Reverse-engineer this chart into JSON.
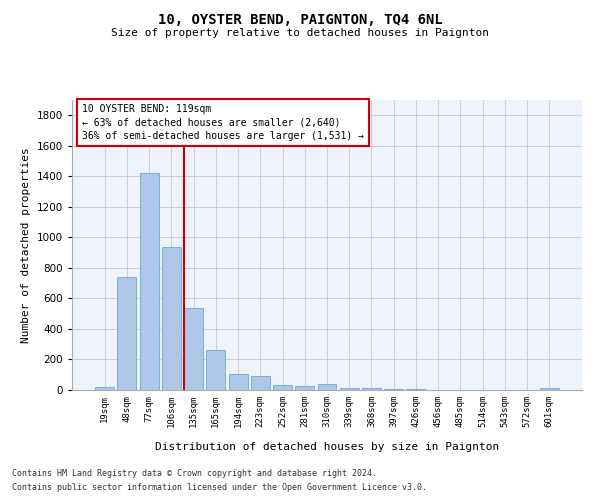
{
  "title1": "10, OYSTER BEND, PAIGNTON, TQ4 6NL",
  "title2": "Size of property relative to detached houses in Paignton",
  "xlabel": "Distribution of detached houses by size in Paignton",
  "ylabel": "Number of detached properties",
  "categories": [
    "19sqm",
    "48sqm",
    "77sqm",
    "106sqm",
    "135sqm",
    "165sqm",
    "194sqm",
    "223sqm",
    "252sqm",
    "281sqm",
    "310sqm",
    "339sqm",
    "368sqm",
    "397sqm",
    "426sqm",
    "456sqm",
    "485sqm",
    "514sqm",
    "543sqm",
    "572sqm",
    "601sqm"
  ],
  "values": [
    20,
    740,
    1420,
    940,
    535,
    265,
    105,
    90,
    35,
    25,
    40,
    15,
    15,
    5,
    5,
    2,
    2,
    1,
    1,
    1,
    15
  ],
  "bar_color": "#aec6e8",
  "bar_edge_color": "#5a9fd4",
  "grid_color": "#c8c8d8",
  "vline_x": 3.57,
  "vline_color": "#cc0000",
  "annotation_text": "10 OYSTER BEND: 119sqm\n← 63% of detached houses are smaller (2,640)\n36% of semi-detached houses are larger (1,531) →",
  "annotation_box_color": "#ffffff",
  "annotation_box_edge": "#cc0000",
  "ylim": [
    0,
    1900
  ],
  "yticks": [
    0,
    200,
    400,
    600,
    800,
    1000,
    1200,
    1400,
    1600,
    1800
  ],
  "footnote1": "Contains HM Land Registry data © Crown copyright and database right 2024.",
  "footnote2": "Contains public sector information licensed under the Open Government Licence v3.0.",
  "bg_color": "#eef2fa"
}
